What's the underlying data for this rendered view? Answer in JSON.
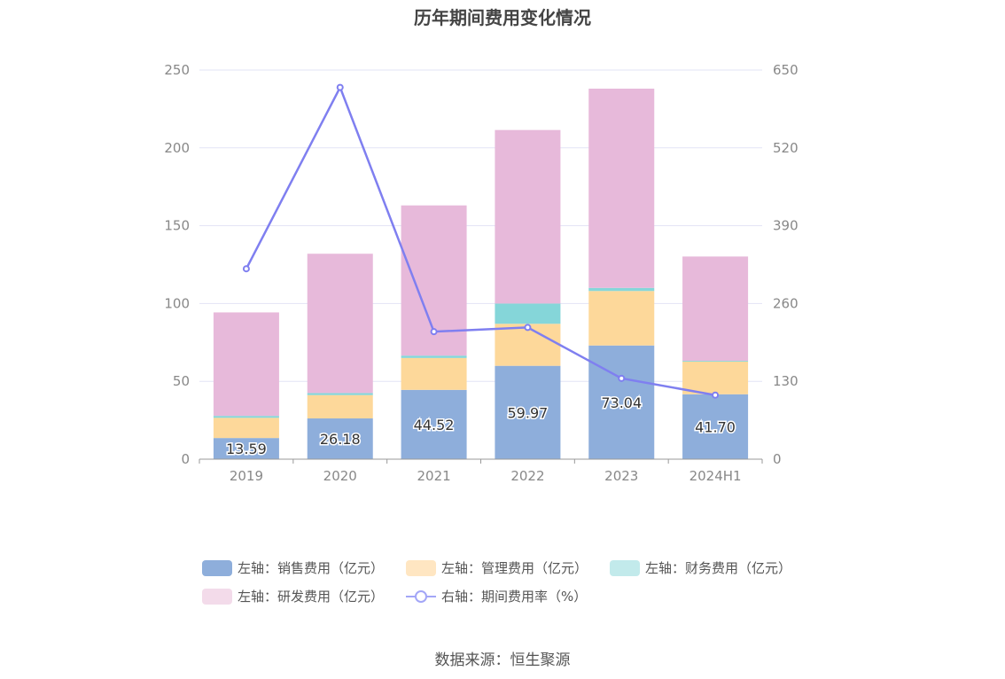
{
  "title": "历年期间费用变化情况",
  "source": "数据来源：恒生聚源",
  "chart_data": {
    "type": "bar",
    "stacked": true,
    "categories": [
      "2019",
      "2020",
      "2021",
      "2022",
      "2023",
      "2024H1"
    ],
    "left_axis": {
      "ylim": [
        0,
        250
      ],
      "ticks": [
        "0",
        "50",
        "100",
        "150",
        "200",
        "250"
      ]
    },
    "right_axis": {
      "ylim": [
        0,
        650
      ],
      "ticks": [
        "0",
        "130",
        "260",
        "390",
        "520",
        "650"
      ]
    },
    "grid": true,
    "legend_position": "bottom",
    "series": [
      {
        "name": "左轴：销售费用（亿元）",
        "type": "bar",
        "color": "#8eaedb",
        "values": [
          13.59,
          26.18,
          44.52,
          59.97,
          73.04,
          41.7
        ],
        "labels": [
          "13.59",
          "26.18",
          "44.52",
          "59.97",
          "73.04",
          "41.70"
        ]
      },
      {
        "name": "左轴：管理费用（亿元）",
        "type": "bar",
        "color": "#fdd89a",
        "values": [
          13.0,
          15.0,
          20.5,
          27.0,
          35.0,
          21.0
        ]
      },
      {
        "name": "左轴：财务费用（亿元）",
        "type": "bar",
        "color": "#85d6d9",
        "values": [
          1.2,
          1.3,
          1.5,
          13.0,
          2.0,
          0.5
        ]
      },
      {
        "name": "左轴：研发费用（亿元）",
        "type": "bar",
        "color": "#e7b9da",
        "values": [
          66.5,
          89.5,
          96.5,
          111.5,
          128.0,
          67.0
        ]
      },
      {
        "name": "右轴：期间费用率（%）",
        "type": "line",
        "axis": "right",
        "color": "#7f7ff0",
        "values": [
          318,
          621,
          213,
          220,
          135,
          107
        ]
      }
    ]
  },
  "legend": {
    "items": [
      {
        "label": "左轴：销售费用（亿元）",
        "color": "#8eaedb"
      },
      {
        "label": "左轴：管理费用（亿元）",
        "color": "#ffe6c2"
      },
      {
        "label": "左轴：财务费用（亿元）",
        "color": "#c2eaeb"
      },
      {
        "label": "左轴：研发费用（亿元）",
        "color": "#f3dbea"
      },
      {
        "label": "右轴：期间费用率（%）",
        "color": "#a3a6f7"
      }
    ]
  }
}
